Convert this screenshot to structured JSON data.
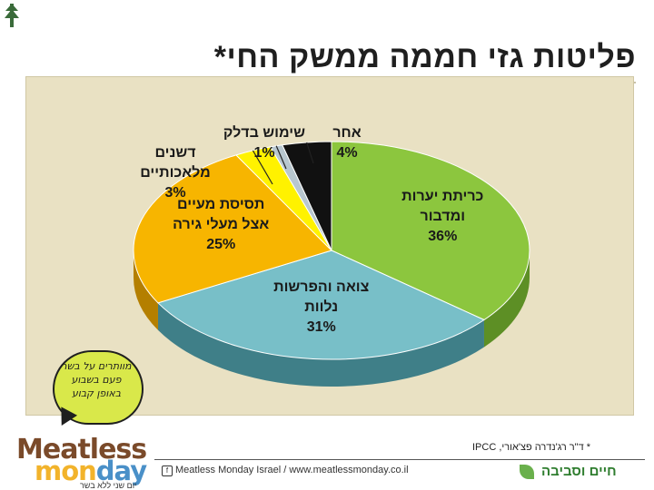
{
  "title": "פליטות גזי חממה ממשק החי*",
  "chart_data": {
    "type": "pie",
    "slices": [
      {
        "label_lines": [
          "כריתת יערות",
          "ומדבור"
        ],
        "value": 36,
        "display": "36%",
        "color": "#8cc63e",
        "side": "#5d8f25"
      },
      {
        "label_lines": [
          "צואה והפרשות",
          "נלוות"
        ],
        "value": 31,
        "display": "31%",
        "color": "#78bfc8",
        "side": "#3f7f88"
      },
      {
        "label_lines": [
          "תסיסת מעיים",
          "אצל מעלי גירה"
        ],
        "value": 25,
        "display": "25%",
        "color": "#f7b500",
        "side": "#b47f00"
      },
      {
        "label_lines": [
          "דשנים",
          "מלאכותיים"
        ],
        "value": 3,
        "display": "3%",
        "color": "#fff200",
        "side": "#b7ad00"
      },
      {
        "label_lines": [
          "שימוש בדלק"
        ],
        "value": 1,
        "display": "1%",
        "color": "#b8c7cf",
        "side": "#7f8e96"
      },
      {
        "label_lines": [
          "אחר"
        ],
        "value": 4,
        "display": "4%",
        "color": "#111111",
        "side": "#000000"
      }
    ]
  },
  "footnote": "* ד\"ר רג'נדרה פצ'אורי, IPCC",
  "footer": {
    "text": "Meatless Monday Israel  /  www.meatlessmonday.co.il",
    "brand": "חיים וסביבה"
  },
  "bubble_text": "מוותרים על בשר פעם בשבוע באופן קבוע",
  "logo": {
    "line1": "Meatless",
    "line2_a": "mon",
    "line2_b": "day"
  },
  "tagline": "יום שני ללא בשר"
}
